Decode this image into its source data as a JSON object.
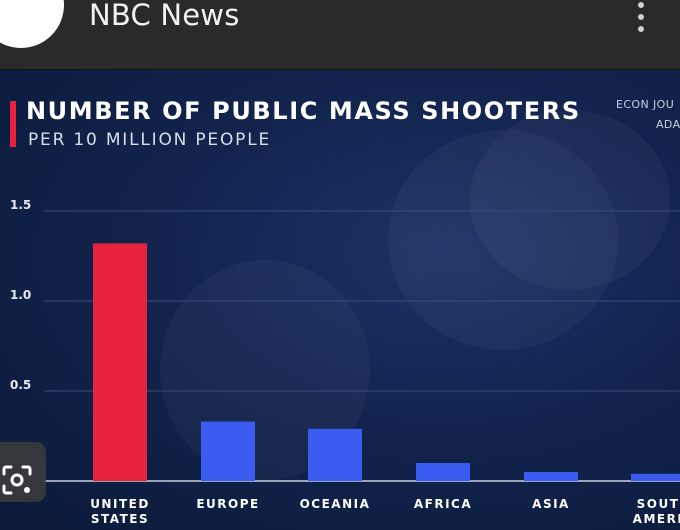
{
  "app": {
    "title": "NBC News",
    "logo_icon": "nbc-peacock-icon",
    "menu_icon": "more-vert-icon"
  },
  "source_text": {
    "line1": "ECON JOU",
    "line2": "ADA"
  },
  "colors": {
    "highlight": "#e8233d",
    "bar": "#3a5cf0",
    "background": "#0f1d3f"
  },
  "chart_data": {
    "type": "bar",
    "title": "NUMBER OF PUBLIC MASS SHOOTERS",
    "subtitle": "PER 10 MILLION PEOPLE",
    "categories": [
      [
        "UNITED",
        "STATES"
      ],
      [
        "EUROPE"
      ],
      [
        "OCEANIA"
      ],
      [
        "AFRICA"
      ],
      [
        "ASIA"
      ],
      [
        "SOUT",
        "AMERI"
      ]
    ],
    "values": [
      1.32,
      0.33,
      0.29,
      0.1,
      0.05,
      0.04
    ],
    "highlight_index": 0,
    "yticks": [
      0.5,
      1.0,
      1.5
    ],
    "ytick_labels": [
      "0.5",
      "1.0",
      "1.5"
    ],
    "ylim": [
      0,
      1.5
    ],
    "grid": true
  }
}
